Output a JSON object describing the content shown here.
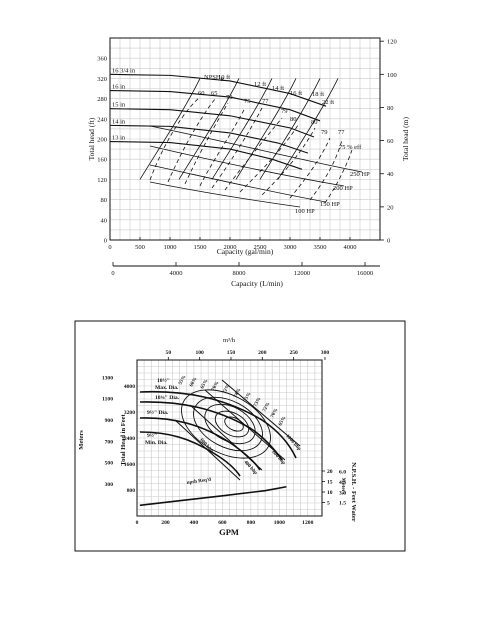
{
  "chart_data": [
    {
      "type": "line",
      "xlabel": "Capacity (gal/min)",
      "ylabel": "Total head (ft)",
      "x2label": "Capacity (L/min)",
      "y2label": "Total head (m)",
      "xlim": [
        0,
        4500
      ],
      "ylim": [
        0,
        400
      ],
      "x_ticks": [
        500,
        1000,
        1500,
        2000,
        2500,
        3000,
        3500,
        4000
      ],
      "y_ticks": [
        0,
        40,
        80,
        120,
        160,
        200,
        240,
        280,
        320,
        360
      ],
      "x2_ticks": [
        0,
        4000,
        8000,
        12000,
        16000
      ],
      "y2_ticks": [
        0,
        20,
        40,
        60,
        80,
        100,
        120
      ],
      "grid": true,
      "impeller_curves": [
        {
          "name": "16 3/4 in",
          "points": [
            [
              0,
              328
            ],
            [
              1000,
              326
            ],
            [
              2000,
              315
            ],
            [
              3000,
              290
            ],
            [
              3600,
              265
            ]
          ]
        },
        {
          "name": "16 in",
          "points": [
            [
              0,
              296
            ],
            [
              1000,
              294
            ],
            [
              2000,
              283
            ],
            [
              3000,
              258
            ],
            [
              3500,
              236
            ]
          ]
        },
        {
          "name": "15 in",
          "points": [
            [
              0,
              260
            ],
            [
              1000,
              258
            ],
            [
              2000,
              246
            ],
            [
              3000,
              222
            ],
            [
              3400,
              204
            ]
          ]
        },
        {
          "name": "14 in",
          "points": [
            [
              0,
              227
            ],
            [
              1000,
              225
            ],
            [
              2000,
              212
            ],
            [
              2800,
              192
            ],
            [
              3300,
              172
            ]
          ]
        },
        {
          "name": "13 in",
          "points": [
            [
              0,
              195
            ],
            [
              1000,
              193
            ],
            [
              2000,
              180
            ],
            [
              2700,
              160
            ],
            [
              3200,
              140
            ]
          ]
        }
      ],
      "npsh_label": "NPSH",
      "npsh_subscript": "R",
      "npsh_curves": [
        {
          "name": "10 ft",
          "x_top": 1500
        },
        {
          "name": "12 ft",
          "x_top": 2150
        },
        {
          "name": "14 ft",
          "x_top": 2700
        },
        {
          "name": "16 ft",
          "x_top": 3100
        },
        {
          "name": "18 ft",
          "x_top": 3500
        },
        {
          "name": "22 ft",
          "x_top": 3800
        }
      ],
      "efficiency_labels": [
        "60",
        "65",
        "70",
        "75",
        "77",
        "79",
        "80",
        "80",
        "79",
        "77",
        "75 % eff"
      ],
      "power_curves": [
        {
          "name": "250 HP",
          "end": [
            4250,
            190
          ]
        },
        {
          "name": "200 HP",
          "end": [
            3850,
            150
          ]
        },
        {
          "name": "150 HP",
          "end": [
            3500,
            112
          ]
        },
        {
          "name": "100 HP",
          "end": [
            3050,
            92
          ]
        }
      ]
    },
    {
      "type": "line",
      "xlabel": "GPM",
      "ylabel": "Total Head in Feet",
      "y2label": "Meters",
      "x2label": "m³/h",
      "y3label": "N.P.S.H. - Feet Water",
      "y4label": "Meters",
      "xlim": [
        0,
        1300
      ],
      "ylim": [
        0,
        4800
      ],
      "x_ticks": [
        0,
        200,
        400,
        600,
        800,
        1000,
        1200
      ],
      "y_ticks": [
        800,
        1600,
        2400,
        3200,
        4000
      ],
      "top_ticks": [
        50,
        100,
        150,
        200,
        250,
        300
      ],
      "meters_ticks": [
        300,
        500,
        700,
        900,
        1100,
        1300
      ],
      "npsh_ticks": [
        5,
        10,
        15,
        20
      ],
      "npsh_meter_ticks": [
        "1.5",
        "3.0",
        "4.5",
        "6.0"
      ],
      "grid": true,
      "impeller_labels": [
        {
          "name": "10½\"",
          "sub": "Max. Dia."
        },
        {
          "name": "10¾\" Dia."
        },
        {
          "name": "9½\" Dia."
        },
        {
          "name": "9½\"",
          "sub": "Min. Dia."
        }
      ],
      "efficiency_labels": [
        "55%",
        "60%",
        "65%",
        "70%",
        "72%",
        "74%",
        "75%",
        "73%",
        "72%",
        "70%",
        "65%"
      ],
      "power_labels": [
        "1000 bhp",
        "800 bhp",
        "600 bhp",
        "400 bhp"
      ],
      "npsh_curve_label": "npsh Req'd",
      "npsh_curve": [
        [
          20,
          330
        ],
        [
          300,
          470
        ],
        [
          600,
          620
        ],
        [
          900,
          780
        ],
        [
          1050,
          900
        ]
      ]
    }
  ]
}
